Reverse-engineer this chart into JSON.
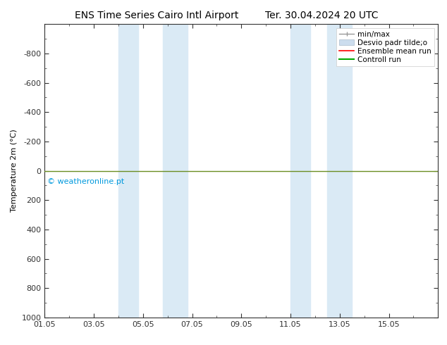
{
  "title_left": "ENS Time Series Cairo Intl Airport",
  "title_right": "Ter. 30.04.2024 20 UTC",
  "ylabel": "Temperature 2m (°C)",
  "xlim": [
    0,
    16
  ],
  "ylim": [
    1000,
    -1000
  ],
  "yticks": [
    -800,
    -600,
    -400,
    -200,
    0,
    200,
    400,
    600,
    800,
    1000
  ],
  "xtick_labels": [
    "01.05",
    "03.05",
    "05.05",
    "07.05",
    "09.05",
    "11.05",
    "13.05",
    "15.05"
  ],
  "xtick_positions": [
    0,
    2,
    4,
    6,
    8,
    10,
    12,
    14
  ],
  "blue_bands": [
    [
      3.0,
      3.8
    ],
    [
      4.8,
      5.8
    ],
    [
      10.0,
      10.8
    ],
    [
      11.5,
      12.5
    ]
  ],
  "blue_band_color": "#daeaf5",
  "hline_y": 0,
  "hline_color": "#6b8e23",
  "hline_linewidth": 1.0,
  "watermark": "© weatheronline.pt",
  "watermark_color": "#0099dd",
  "watermark_fontsize": 8,
  "legend_fontsize": 7.5,
  "bg_color": "#ffffff",
  "axis_color": "#333333",
  "title_fontsize": 10,
  "label_fontsize": 8
}
